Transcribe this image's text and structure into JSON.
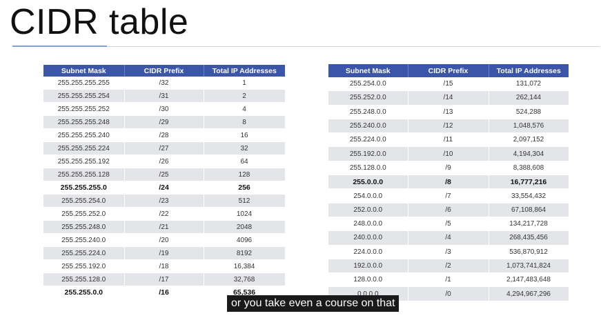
{
  "slide": {
    "title": "CIDR table"
  },
  "left_table": {
    "headers": [
      "Subnet Mask",
      "CIDR Prefix",
      "Total IP Addresses"
    ],
    "rows": [
      {
        "mask": "255.255.255.255",
        "prefix": "/32",
        "total": "1",
        "bold": false
      },
      {
        "mask": "255.255.255.254",
        "prefix": "/31",
        "total": "2",
        "bold": false
      },
      {
        "mask": "255.255.255.252",
        "prefix": "/30",
        "total": "4",
        "bold": false
      },
      {
        "mask": "255.255.255.248",
        "prefix": "/29",
        "total": "8",
        "bold": false
      },
      {
        "mask": "255.255.255.240",
        "prefix": "/28",
        "total": "16",
        "bold": false
      },
      {
        "mask": "255.255.255.224",
        "prefix": "/27",
        "total": "32",
        "bold": false
      },
      {
        "mask": "255.255.255.192",
        "prefix": "/26",
        "total": "64",
        "bold": false
      },
      {
        "mask": "255.255.255.128",
        "prefix": "/25",
        "total": "128",
        "bold": false
      },
      {
        "mask": "255.255.255.0",
        "prefix": "/24",
        "total": "256",
        "bold": true
      },
      {
        "mask": "255.255.254.0",
        "prefix": "/23",
        "total": "512",
        "bold": false
      },
      {
        "mask": "255.255.252.0",
        "prefix": "/22",
        "total": "1024",
        "bold": false
      },
      {
        "mask": "255.255.248.0",
        "prefix": "/21",
        "total": "2048",
        "bold": false
      },
      {
        "mask": "255.255.240.0",
        "prefix": "/20",
        "total": "4096",
        "bold": false
      },
      {
        "mask": "255.255.224.0",
        "prefix": "/19",
        "total": "8192",
        "bold": false
      },
      {
        "mask": "255.255.192.0",
        "prefix": "/18",
        "total": "16,384",
        "bold": false
      },
      {
        "mask": "255.255.128.0",
        "prefix": "/17",
        "total": "32,768",
        "bold": false
      },
      {
        "mask": "255.255.0.0",
        "prefix": "/16",
        "total": "65,536",
        "bold": true
      }
    ]
  },
  "right_table": {
    "headers": [
      "Subnet Mask",
      "CIDR Prefix",
      "Total IP Addresses"
    ],
    "rows": [
      {
        "mask": "255.254.0.0",
        "prefix": "/15",
        "total": "131,072",
        "bold": false
      },
      {
        "mask": "255.252.0.0",
        "prefix": "/14",
        "total": "262,144",
        "bold": false
      },
      {
        "mask": "255.248.0.0",
        "prefix": "/13",
        "total": "524,288",
        "bold": false
      },
      {
        "mask": "255.240.0.0",
        "prefix": "/12",
        "total": "1,048,576",
        "bold": false
      },
      {
        "mask": "255.224.0.0",
        "prefix": "/11",
        "total": "2,097,152",
        "bold": false
      },
      {
        "mask": "255.192.0.0",
        "prefix": "/10",
        "total": "4,194,304",
        "bold": false
      },
      {
        "mask": "255.128.0.0",
        "prefix": "/9",
        "total": "8,388,608",
        "bold": false
      },
      {
        "mask": "255.0.0.0",
        "prefix": "/8",
        "total": "16,777,216",
        "bold": true
      },
      {
        "mask": "254.0.0.0",
        "prefix": "/7",
        "total": "33,554,432",
        "bold": false
      },
      {
        "mask": "252.0.0.0",
        "prefix": "/6",
        "total": "67,108,864",
        "bold": false
      },
      {
        "mask": "248.0.0.0",
        "prefix": "/5",
        "total": "134,217,728",
        "bold": false
      },
      {
        "mask": "240.0.0.0",
        "prefix": "/4",
        "total": "268,435,456",
        "bold": false
      },
      {
        "mask": "224.0.0.0",
        "prefix": "/3",
        "total": "536,870,912",
        "bold": false
      },
      {
        "mask": "192.0.0.0",
        "prefix": "/2",
        "total": "1,073,741,824",
        "bold": false
      },
      {
        "mask": "128.0.0.0",
        "prefix": "/1",
        "total": "2,147,483,648",
        "bold": false
      },
      {
        "mask": "0.0.0.0",
        "prefix": "/0",
        "total": "4,294,967,296",
        "bold": false
      }
    ]
  },
  "caption": {
    "text": "or you take even a course on that"
  },
  "colors": {
    "header_bg": "#3b55a8",
    "stripe": "#e4e5e8",
    "accent_rule": "#7ea3cf",
    "caption_bg": "#1a1a1a"
  }
}
